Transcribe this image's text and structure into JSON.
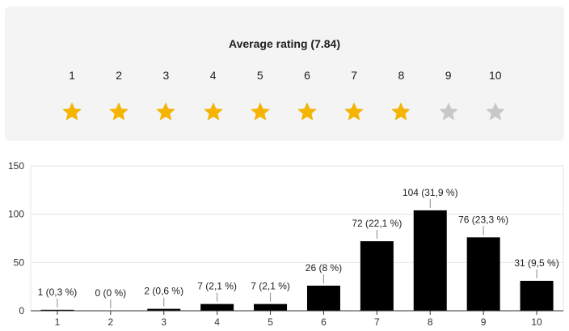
{
  "rating": {
    "title": "Average rating (7.84)",
    "average": 7.84,
    "max": 10,
    "scale": [
      "1",
      "2",
      "3",
      "4",
      "5",
      "6",
      "7",
      "8",
      "9",
      "10"
    ],
    "colors": {
      "filled": "#f5b400",
      "empty": "#c8c8c8"
    }
  },
  "chart_data": {
    "type": "bar",
    "categories": [
      "1",
      "2",
      "3",
      "4",
      "5",
      "6",
      "7",
      "8",
      "9",
      "10"
    ],
    "values": [
      1,
      0,
      2,
      7,
      7,
      26,
      72,
      104,
      76,
      31
    ],
    "data_labels": [
      "1 (0,3 %)",
      "0 (0 %)",
      "2 (0,6 %)",
      "7 (2,1 %)",
      "7 (2,1 %)",
      "26 (8 %)",
      "72 (22,1 %)",
      "104 (31,9 %)",
      "76 (23,3 %)",
      "31 (9,5 %)"
    ],
    "yticks": [
      "0",
      "50",
      "100",
      "150"
    ],
    "ylim": [
      0,
      150
    ],
    "grid": true,
    "bar_color": "#000000",
    "title": "",
    "xlabel": "",
    "ylabel": ""
  }
}
